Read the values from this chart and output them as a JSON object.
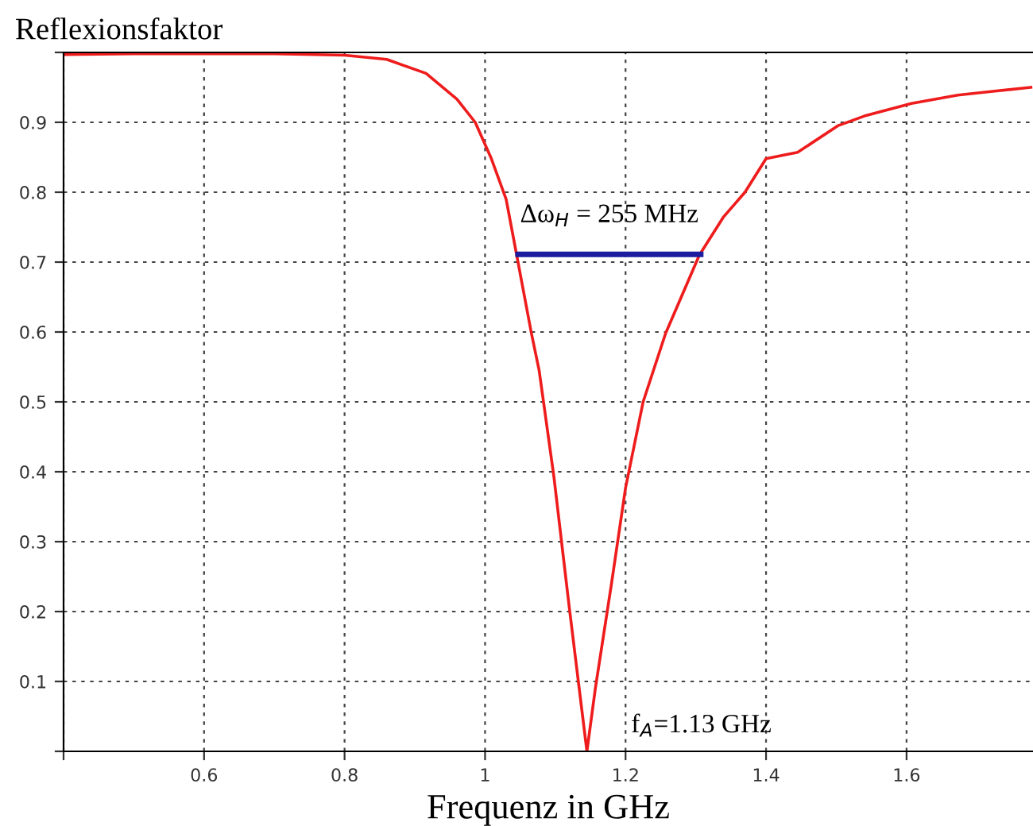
{
  "chart_data": {
    "type": "line",
    "title": "Reflexionsfaktor",
    "xlabel": "Frequenz in GHz",
    "xlim": [
      0.4,
      1.78
    ],
    "ylim": [
      0,
      1
    ],
    "xticks": [
      {
        "value": 0.4,
        "label": null
      },
      0.6,
      0.8,
      {
        "value": 1.0,
        "label": "1"
      },
      1.2,
      1.4,
      1.6
    ],
    "yticks": [
      {
        "value": 0,
        "label": null
      },
      0.1,
      0.2,
      0.3,
      0.4,
      0.5,
      0.6,
      0.7,
      0.8,
      0.9,
      {
        "value": 1.0,
        "label": null
      }
    ],
    "grid": true,
    "legend": false,
    "marker": "none",
    "line_style": "solid",
    "series": [
      {
        "color": "#ee1c1c",
        "x": [
          0.4,
          0.5,
          0.6,
          0.7,
          0.8,
          0.86,
          0.916,
          0.96,
          0.986,
          1.009,
          1.03,
          1.045,
          1.066,
          1.077,
          1.098,
          1.12,
          1.134,
          1.145,
          1.157,
          1.18,
          1.2,
          1.225,
          1.257,
          1.305,
          1.339,
          1.37,
          1.4,
          1.445,
          1.502,
          1.54,
          1.607,
          1.673,
          1.72,
          1.777
        ],
        "values": [
          0.997,
          0.998,
          0.998,
          0.998,
          0.996,
          0.99,
          0.97,
          0.933,
          0.9,
          0.848,
          0.79,
          0.71,
          0.598,
          0.545,
          0.393,
          0.205,
          0.09,
          0.0,
          0.09,
          0.24,
          0.377,
          0.5,
          0.598,
          0.71,
          0.764,
          0.8,
          0.848,
          0.857,
          0.895,
          0.909,
          0.927,
          0.939,
          0.944,
          0.95
        ]
      },
      {
        "color": "#1c1ca0",
        "x": [
          1.047,
          1.307
        ],
        "values": [
          0.711,
          0.711
        ]
      }
    ],
    "annotations": [
      {
        "text": "Δω$_{H}$ = 255 MHz",
        "x": 1.177,
        "y": 0.711
      },
      {
        "text": "f$_{A}$=1.13 GHz",
        "x": 1.145,
        "y": 0.0
      }
    ]
  }
}
